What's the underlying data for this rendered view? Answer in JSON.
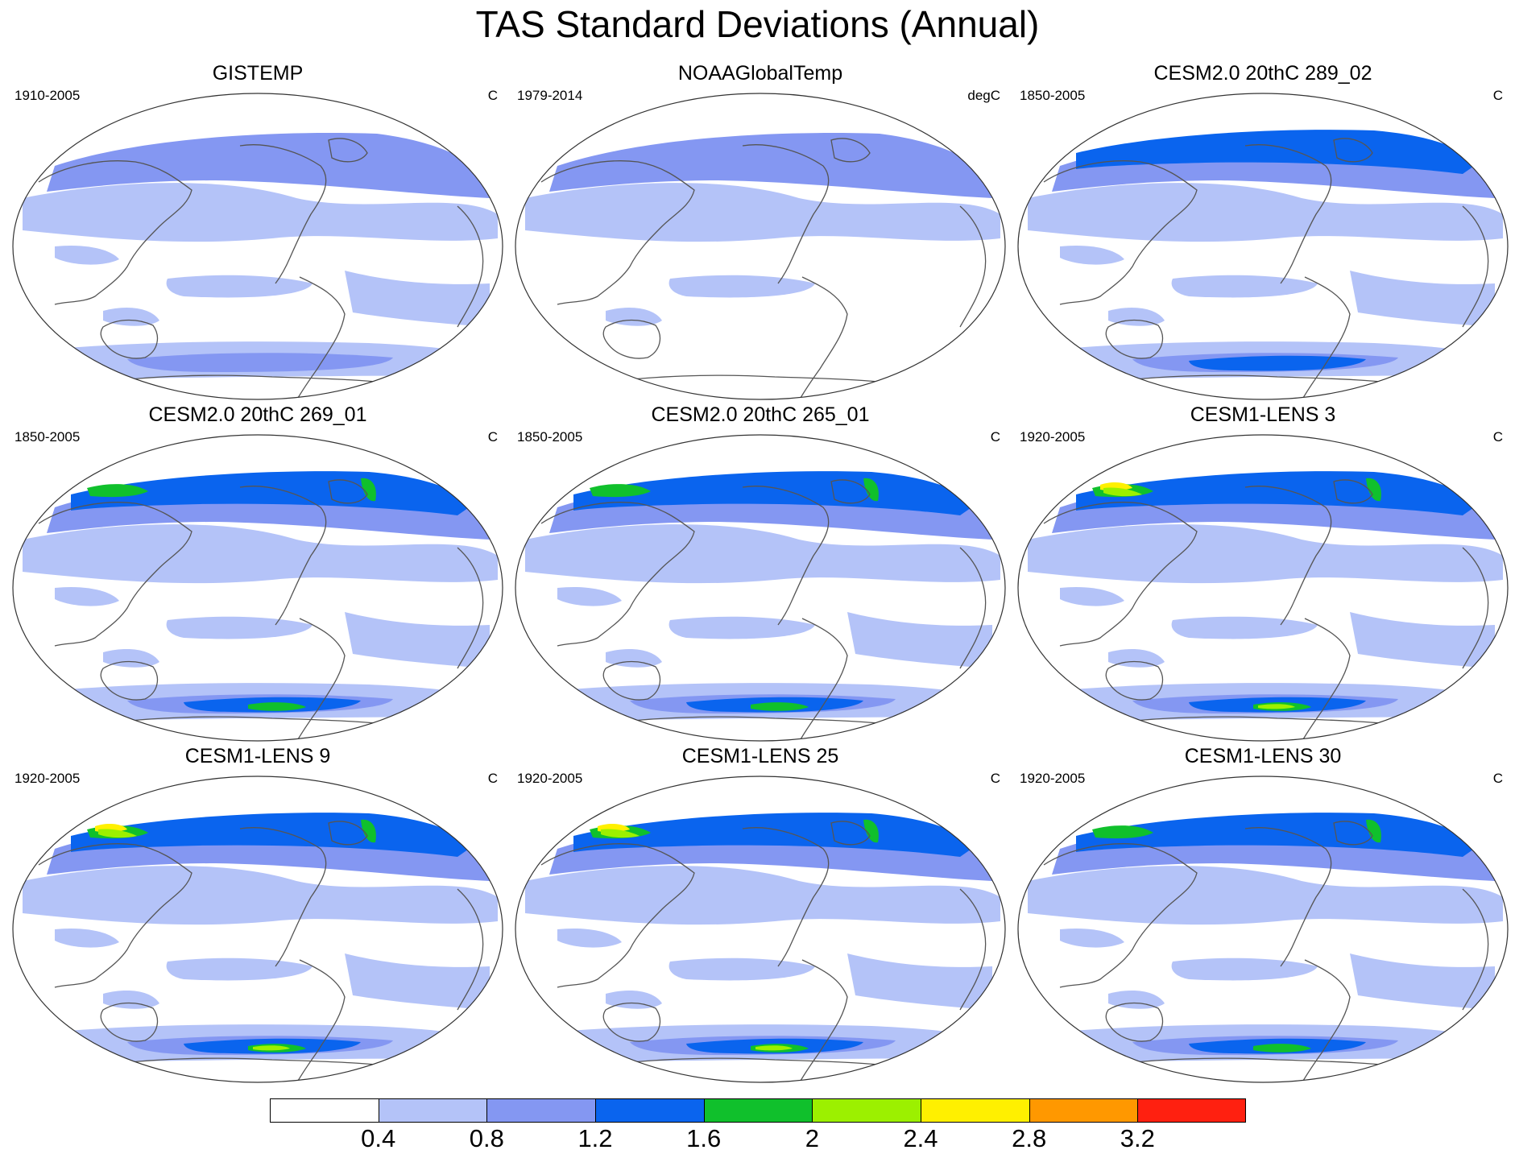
{
  "title": "TAS Standard Deviations (Annual)",
  "panels": [
    {
      "title": "GISTEMP",
      "years": "1910-2005",
      "units": "C",
      "level": 1
    },
    {
      "title": "NOAAGlobalTemp",
      "years": "1979-2014",
      "units": "degC",
      "level": 0
    },
    {
      "title": "CESM2.0 20thC 289_02",
      "years": "1850-2005",
      "units": "C",
      "level": 2
    },
    {
      "title": "CESM2.0 20thC 269_01",
      "years": "1850-2005",
      "units": "C",
      "level": 3
    },
    {
      "title": "CESM2.0 20thC 265_01",
      "years": "1850-2005",
      "units": "C",
      "level": 3
    },
    {
      "title": "CESM1-LENS 3",
      "years": "1920-2005",
      "units": "C",
      "level": 4
    },
    {
      "title": "CESM1-LENS 9",
      "years": "1920-2005",
      "units": "C",
      "level": 4
    },
    {
      "title": "CESM1-LENS 25",
      "years": "1920-2005",
      "units": "C",
      "level": 4
    },
    {
      "title": "CESM1-LENS 30",
      "years": "1920-2005",
      "units": "C",
      "level": 3
    }
  ],
  "colorbar": {
    "colors": [
      "#ffffff",
      "#b4c3f8",
      "#8497f2",
      "#0a64ee",
      "#10c02c",
      "#9cf000",
      "#fff000",
      "#ff9800",
      "#ff2010"
    ],
    "labels": [
      "0.4",
      "0.8",
      "1.2",
      "1.6",
      "2",
      "2.4",
      "2.8",
      "3.2"
    ]
  }
}
